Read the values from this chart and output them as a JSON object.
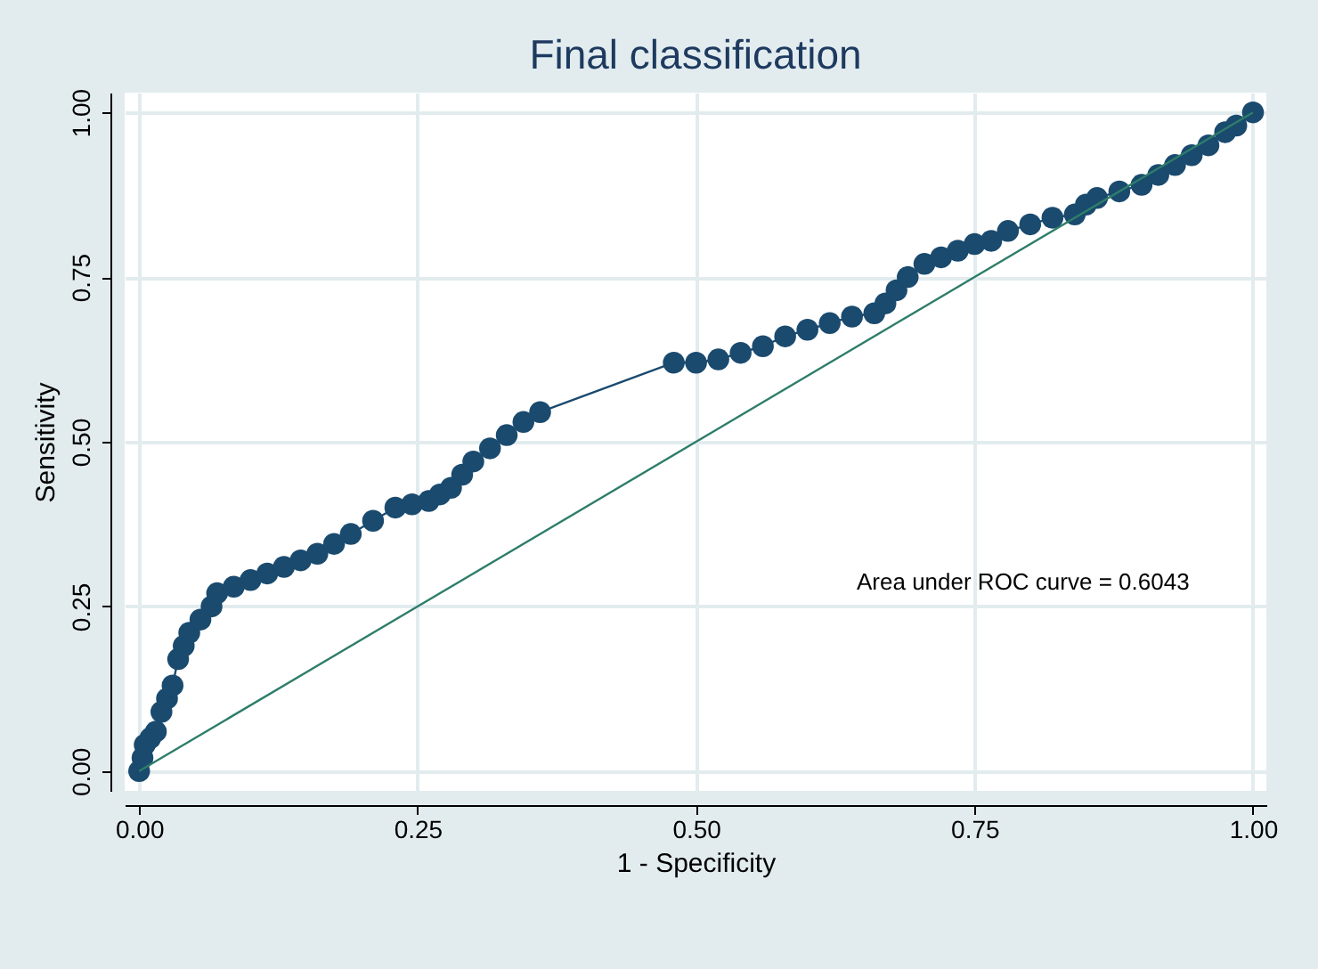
{
  "chart_data": {
    "type": "line",
    "title": "Final classification",
    "xlabel": "1 - Specificity",
    "ylabel": "Sensitivity",
    "annotations": [
      "Area under ROC curve = 0.6043"
    ],
    "xlim": [
      -0.013,
      1.012
    ],
    "ylim": [
      -0.03,
      1.03
    ],
    "xticks": [
      {
        "value": 0,
        "label": "0.00"
      },
      {
        "value": 0.25,
        "label": "0.25"
      },
      {
        "value": 0.5,
        "label": "0.50"
      },
      {
        "value": 0.75,
        "label": "0.75"
      },
      {
        "value": 1,
        "label": "1.00"
      }
    ],
    "yticks": [
      {
        "value": 0,
        "label": "0.00"
      },
      {
        "value": 0.25,
        "label": "0.25"
      },
      {
        "value": 0.5,
        "label": "0.50"
      },
      {
        "value": 0.75,
        "label": "0.75"
      },
      {
        "value": 1,
        "label": "1.00"
      }
    ],
    "grid": true,
    "series": [
      {
        "color": "#1a4a6e",
        "marker": "circle",
        "x": [
          0,
          0.003,
          0.005,
          0.01,
          0.015,
          0.02,
          0.025,
          0.03,
          0.035,
          0.04,
          0.045,
          0.055,
          0.065,
          0.07,
          0.085,
          0.1,
          0.115,
          0.13,
          0.145,
          0.16,
          0.175,
          0.19,
          0.21,
          0.23,
          0.245,
          0.26,
          0.27,
          0.28,
          0.29,
          0.3,
          0.315,
          0.33,
          0.345,
          0.36,
          0.48,
          0.5,
          0.52,
          0.54,
          0.56,
          0.58,
          0.6,
          0.62,
          0.64,
          0.66,
          0.67,
          0.68,
          0.69,
          0.705,
          0.72,
          0.735,
          0.75,
          0.765,
          0.78,
          0.8,
          0.82,
          0.84,
          0.85,
          0.86,
          0.88,
          0.9,
          0.915,
          0.93,
          0.945,
          0.96,
          0.975,
          0.985,
          1
        ],
        "values": [
          0,
          0.02,
          0.04,
          0.05,
          0.06,
          0.09,
          0.11,
          0.13,
          0.17,
          0.19,
          0.21,
          0.23,
          0.25,
          0.27,
          0.28,
          0.29,
          0.3,
          0.31,
          0.32,
          0.33,
          0.345,
          0.36,
          0.38,
          0.4,
          0.405,
          0.41,
          0.42,
          0.43,
          0.45,
          0.47,
          0.49,
          0.51,
          0.53,
          0.545,
          0.62,
          0.62,
          0.625,
          0.635,
          0.645,
          0.66,
          0.67,
          0.68,
          0.69,
          0.695,
          0.71,
          0.73,
          0.75,
          0.77,
          0.78,
          0.79,
          0.8,
          0.805,
          0.82,
          0.83,
          0.84,
          0.845,
          0.86,
          0.87,
          0.88,
          0.89,
          0.905,
          0.92,
          0.935,
          0.95,
          0.97,
          0.98,
          1
        ]
      },
      {
        "color": "#2e7d6a",
        "marker": "none",
        "x": [
          0,
          1
        ],
        "values": [
          0,
          1
        ]
      }
    ]
  }
}
